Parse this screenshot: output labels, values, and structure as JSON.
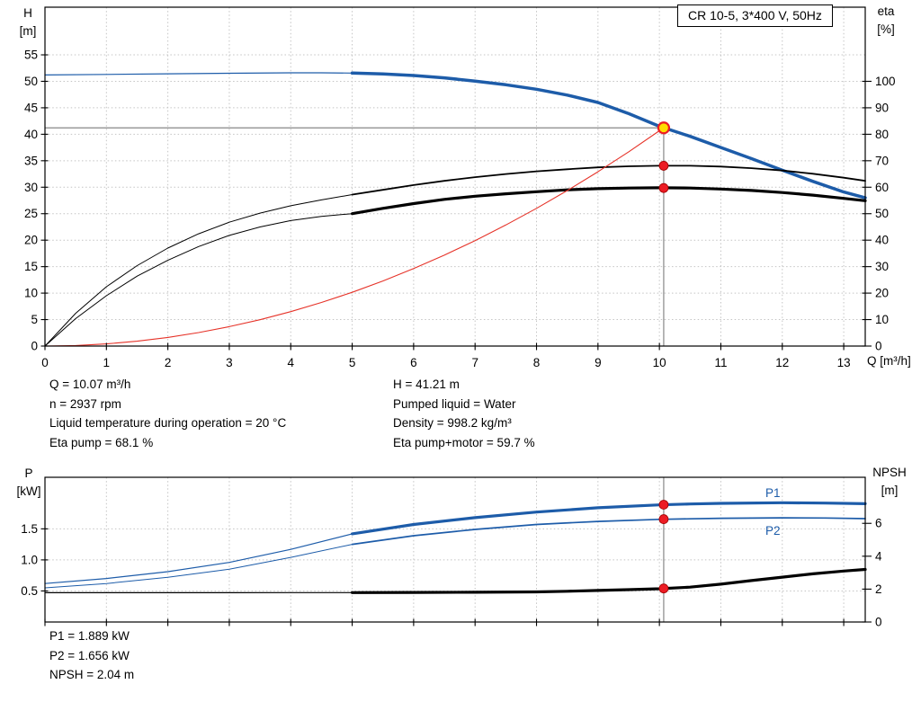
{
  "title_box": {
    "label": "CR 10-5, 3*400 V, 50Hz"
  },
  "colors": {
    "curve_blue": "#1d5ca9",
    "curve_black": "#000000",
    "curve_red": "#e63329",
    "grid": "#c4c4c4",
    "axis": "#000000",
    "duty_line": "#878787",
    "marker_red": "#ec1c24",
    "marker_edge": "#a00000",
    "op_fill": "#ffdd00",
    "label_blue": "#1d5ca9"
  },
  "top_chart": {
    "y_left_title": [
      "H",
      "[m]"
    ],
    "y_right_title": [
      "eta",
      "[%]"
    ],
    "x_title": "Q [m³/h]"
  },
  "bottom_chart": {
    "y_left_title": [
      "P",
      "[kW]"
    ],
    "y_right_title": [
      "NPSH",
      "[m]"
    ],
    "p1_label": "P1",
    "p2_label": "P2"
  },
  "info_top": {
    "left": [
      "Q = 10.07 m³/h",
      "n = 2937 rpm",
      "Liquid temperature during operation = 20 °C",
      "Eta pump = 68.1 %"
    ],
    "right": [
      "H = 41.21 m",
      "Pumped liquid = Water",
      "Density = 998.2 kg/m³",
      "Eta pump+motor = 59.7 %"
    ]
  },
  "info_bottom": [
    "P1 = 1.889 kW",
    "P2 = 1.656 kW",
    "NPSH = 2.04 m"
  ],
  "chart_data": [
    {
      "type": "line",
      "name": "qh-eta-chart",
      "title": "CR 10-5, 3*400 V, 50Hz",
      "xlabel": "Q [m³/h]",
      "ylabel_left": "H [m]",
      "ylabel_right": "eta [%]",
      "xlim": [
        0,
        13.35
      ],
      "ylim_left": [
        0,
        64
      ],
      "ylim_right": [
        0,
        128
      ],
      "grid": true,
      "x_ticks": [
        [
          0,
          "0"
        ],
        [
          1,
          "1"
        ],
        [
          2,
          "2"
        ],
        [
          3,
          "3"
        ],
        [
          4,
          "4"
        ],
        [
          5,
          "5"
        ],
        [
          6,
          "6"
        ],
        [
          7,
          "7"
        ],
        [
          8,
          "8"
        ],
        [
          9,
          "9"
        ],
        [
          10,
          "10"
        ],
        [
          11,
          "11"
        ],
        [
          12,
          "12"
        ],
        [
          13,
          "13"
        ]
      ],
      "y_ticks_left": [
        [
          0,
          "0"
        ],
        [
          5,
          "5"
        ],
        [
          10,
          "10"
        ],
        [
          15,
          "15"
        ],
        [
          20,
          "20"
        ],
        [
          25,
          "25"
        ],
        [
          30,
          "30"
        ],
        [
          35,
          "35"
        ],
        [
          40,
          "40"
        ],
        [
          45,
          "45"
        ],
        [
          50,
          "50"
        ],
        [
          55,
          "55"
        ]
      ],
      "y_ticks_right": [
        [
          0,
          "0"
        ],
        [
          10,
          "10"
        ],
        [
          20,
          "20"
        ],
        [
          30,
          "30"
        ],
        [
          40,
          "40"
        ],
        [
          50,
          "50"
        ],
        [
          60,
          "60"
        ],
        [
          70,
          "70"
        ],
        [
          80,
          "80"
        ],
        [
          90,
          "90"
        ],
        [
          100,
          "100"
        ]
      ],
      "duty_lines": {
        "horizontal": {
          "value": 41.21,
          "q_from": 0,
          "q_to": 10.07
        },
        "vertical": {
          "q": 10.07,
          "from_value": 41.21,
          "full": false
        }
      },
      "series": [
        {
          "name": "h-curve-thin",
          "color": "blue",
          "scale": "left",
          "width": 1.2,
          "points": [
            [
              0,
              51.2
            ],
            [
              1,
              51.3
            ],
            [
              2,
              51.42
            ],
            [
              3,
              51.52
            ],
            [
              4,
              51.6
            ],
            [
              4.5,
              51.6
            ],
            [
              5,
              51.55
            ]
          ]
        },
        {
          "name": "h-curve",
          "color": "blue",
          "scale": "left",
          "width": 3.5,
          "points": [
            [
              5,
              51.55
            ],
            [
              5.5,
              51.4
            ],
            [
              6,
              51.1
            ],
            [
              6.5,
              50.65
            ],
            [
              7,
              50.05
            ],
            [
              7.5,
              49.35
            ],
            [
              8,
              48.5
            ],
            [
              8.5,
              47.4
            ],
            [
              9,
              46.0
            ],
            [
              9.5,
              43.9
            ],
            [
              10,
              41.5
            ],
            [
              10.5,
              39.6
            ],
            [
              11,
              37.5
            ],
            [
              11.5,
              35.4
            ],
            [
              12,
              33.2
            ],
            [
              12.5,
              31.1
            ],
            [
              13,
              29.1
            ],
            [
              13.35,
              28.0
            ]
          ]
        },
        {
          "name": "eta-pump-curve-thin",
          "color": "black",
          "scale": "left",
          "width": 1,
          "points": [
            [
              0,
              0
            ],
            [
              0.5,
              6.2
            ],
            [
              1,
              11.2
            ],
            [
              1.5,
              15.2
            ],
            [
              2,
              18.5
            ],
            [
              2.5,
              21.2
            ],
            [
              3,
              23.4
            ],
            [
              3.5,
              25.1
            ],
            [
              4,
              26.5
            ],
            [
              4.5,
              27.6
            ],
            [
              5,
              28.6
            ]
          ]
        },
        {
          "name": "eta-pump-curve",
          "color": "black",
          "scale": "left",
          "width": 1.8,
          "points": [
            [
              5,
              28.6
            ],
            [
              5.5,
              29.5
            ],
            [
              6,
              30.4
            ],
            [
              6.5,
              31.2
            ],
            [
              7,
              31.9
            ],
            [
              7.5,
              32.5
            ],
            [
              8,
              33.0
            ],
            [
              8.5,
              33.4
            ],
            [
              9,
              33.75
            ],
            [
              9.5,
              33.95
            ],
            [
              10,
              34.05
            ],
            [
              10.5,
              34.05
            ],
            [
              11,
              33.9
            ],
            [
              11.5,
              33.6
            ],
            [
              12,
              33.15
            ],
            [
              12.5,
              32.55
            ],
            [
              13,
              31.8
            ],
            [
              13.35,
              31.2
            ]
          ]
        },
        {
          "name": "eta-pump-motor-curve-thin",
          "color": "black",
          "scale": "left",
          "width": 1,
          "points": [
            [
              0,
              0
            ],
            [
              0.5,
              5.2
            ],
            [
              1,
              9.5
            ],
            [
              1.5,
              13.2
            ],
            [
              2,
              16.2
            ],
            [
              2.5,
              18.8
            ],
            [
              3,
              20.9
            ],
            [
              3.5,
              22.5
            ],
            [
              4,
              23.7
            ],
            [
              4.5,
              24.5
            ],
            [
              5,
              25.0
            ]
          ]
        },
        {
          "name": "eta-pump-motor-curve",
          "color": "black",
          "scale": "left",
          "width": 3.2,
          "points": [
            [
              5,
              25.0
            ],
            [
              5.5,
              26.0
            ],
            [
              6,
              26.9
            ],
            [
              6.5,
              27.7
            ],
            [
              7,
              28.3
            ],
            [
              7.5,
              28.75
            ],
            [
              8,
              29.15
            ],
            [
              8.5,
              29.5
            ],
            [
              9,
              29.72
            ],
            [
              9.5,
              29.85
            ],
            [
              10,
              29.9
            ],
            [
              10.5,
              29.85
            ],
            [
              11,
              29.65
            ],
            [
              11.5,
              29.38
            ],
            [
              12,
              29.0
            ],
            [
              12.5,
              28.5
            ],
            [
              13,
              27.9
            ],
            [
              13.35,
              27.45
            ]
          ]
        },
        {
          "name": "system-curve",
          "color": "red",
          "scale": "left",
          "width": 1.1,
          "points": [
            [
              0,
              0
            ],
            [
              0.5,
              0.1
            ],
            [
              1,
              0.41
            ],
            [
              1.5,
              0.91
            ],
            [
              2,
              1.63
            ],
            [
              2.5,
              2.54
            ],
            [
              3,
              3.66
            ],
            [
              3.5,
              4.98
            ],
            [
              4,
              6.5
            ],
            [
              4.5,
              8.23
            ],
            [
              5,
              10.16
            ],
            [
              5.5,
              12.29
            ],
            [
              6,
              14.63
            ],
            [
              6.5,
              17.17
            ],
            [
              7,
              19.91
            ],
            [
              7.5,
              22.86
            ],
            [
              8,
              26.01
            ],
            [
              8.5,
              29.37
            ],
            [
              9,
              32.92
            ],
            [
              9.5,
              36.68
            ],
            [
              10,
              40.65
            ],
            [
              10.07,
              41.21
            ]
          ]
        }
      ],
      "markers": [
        {
          "name": "duty-point",
          "q": 10.07,
          "value": 41.21,
          "scale": "left",
          "style": "operating"
        },
        {
          "name": "eta-pump-duty-point",
          "q": 10.07,
          "value": 34.05,
          "scale": "left",
          "style": "red"
        },
        {
          "name": "eta-pump-motor-duty-point",
          "q": 10.07,
          "value": 29.85,
          "scale": "left",
          "style": "red"
        }
      ]
    },
    {
      "type": "line",
      "name": "power-npsh-chart",
      "ylabel_left": "P [kW]",
      "ylabel_right": "NPSH [m]",
      "xlim": [
        0,
        13.35
      ],
      "ylim_left": [
        0,
        2.33
      ],
      "ylim_right": [
        0,
        8.8
      ],
      "grid": true,
      "x_ticks": [
        [
          0,
          ""
        ],
        [
          1,
          ""
        ],
        [
          2,
          ""
        ],
        [
          3,
          ""
        ],
        [
          4,
          ""
        ],
        [
          5,
          ""
        ],
        [
          6,
          ""
        ],
        [
          7,
          ""
        ],
        [
          8,
          ""
        ],
        [
          9,
          ""
        ],
        [
          10,
          ""
        ],
        [
          11,
          ""
        ],
        [
          12,
          ""
        ],
        [
          13,
          ""
        ]
      ],
      "y_ticks_left": [
        [
          0.5,
          "0.5"
        ],
        [
          1,
          "1.0"
        ],
        [
          1.5,
          "1.5"
        ]
      ],
      "y_ticks_right": [
        [
          0,
          "0"
        ],
        [
          2,
          "2"
        ],
        [
          4,
          "4"
        ],
        [
          6,
          "6"
        ]
      ],
      "duty_lines": {
        "vertical": {
          "q": 10.07,
          "full": true
        }
      },
      "series": [
        {
          "name": "p1-curve-thin",
          "color": "blue",
          "scale": "left",
          "width": 1.2,
          "points": [
            [
              0,
              0.62
            ],
            [
              1,
              0.7
            ],
            [
              2,
              0.81
            ],
            [
              3,
              0.96
            ],
            [
              4,
              1.17
            ],
            [
              5,
              1.42
            ]
          ]
        },
        {
          "name": "p1-curve",
          "color": "blue",
          "scale": "left",
          "width": 3.2,
          "points": [
            [
              5,
              1.42
            ],
            [
              6,
              1.57
            ],
            [
              7,
              1.68
            ],
            [
              8,
              1.77
            ],
            [
              9,
              1.84
            ],
            [
              10,
              1.885
            ],
            [
              10.5,
              1.9
            ],
            [
              11,
              1.91
            ],
            [
              12,
              1.92
            ],
            [
              12.7,
              1.915
            ],
            [
              13.35,
              1.905
            ]
          ]
        },
        {
          "name": "p2-curve-thin",
          "color": "blue",
          "scale": "left",
          "width": 1,
          "points": [
            [
              0,
              0.55
            ],
            [
              1,
              0.62
            ],
            [
              2,
              0.72
            ],
            [
              3,
              0.85
            ],
            [
              4,
              1.04
            ],
            [
              5,
              1.25
            ]
          ]
        },
        {
          "name": "p2-curve",
          "color": "blue",
          "scale": "left",
          "width": 1.7,
          "points": [
            [
              5,
              1.25
            ],
            [
              6,
              1.39
            ],
            [
              7,
              1.49
            ],
            [
              8,
              1.57
            ],
            [
              9,
              1.62
            ],
            [
              10,
              1.653
            ],
            [
              10.5,
              1.662
            ],
            [
              11,
              1.67
            ],
            [
              12,
              1.678
            ],
            [
              12.7,
              1.674
            ],
            [
              13.35,
              1.665
            ]
          ]
        },
        {
          "name": "npsh-curve-thin",
          "color": "black",
          "scale": "right",
          "width": 1.2,
          "points": [
            [
              0,
              1.78
            ],
            [
              2,
              1.78
            ],
            [
              4,
              1.79
            ],
            [
              5,
              1.79
            ]
          ]
        },
        {
          "name": "npsh-curve",
          "color": "black",
          "scale": "right",
          "width": 3.2,
          "points": [
            [
              5,
              1.79
            ],
            [
              6,
              1.8
            ],
            [
              7,
              1.81
            ],
            [
              8,
              1.83
            ],
            [
              8.5,
              1.87
            ],
            [
              9,
              1.92
            ],
            [
              9.5,
              1.97
            ],
            [
              10,
              2.02
            ],
            [
              10.5,
              2.12
            ],
            [
              11,
              2.3
            ],
            [
              11.5,
              2.52
            ],
            [
              12,
              2.73
            ],
            [
              12.5,
              2.93
            ],
            [
              13,
              3.1
            ],
            [
              13.35,
              3.2
            ]
          ]
        }
      ],
      "markers": [
        {
          "name": "p1-duty-point",
          "q": 10.07,
          "value": 1.889,
          "scale": "left",
          "style": "red"
        },
        {
          "name": "p2-duty-point",
          "q": 10.07,
          "value": 1.656,
          "scale": "left",
          "style": "red"
        },
        {
          "name": "npsh-duty-point",
          "q": 10.07,
          "value": 2.04,
          "scale": "right",
          "style": "red"
        }
      ]
    }
  ]
}
